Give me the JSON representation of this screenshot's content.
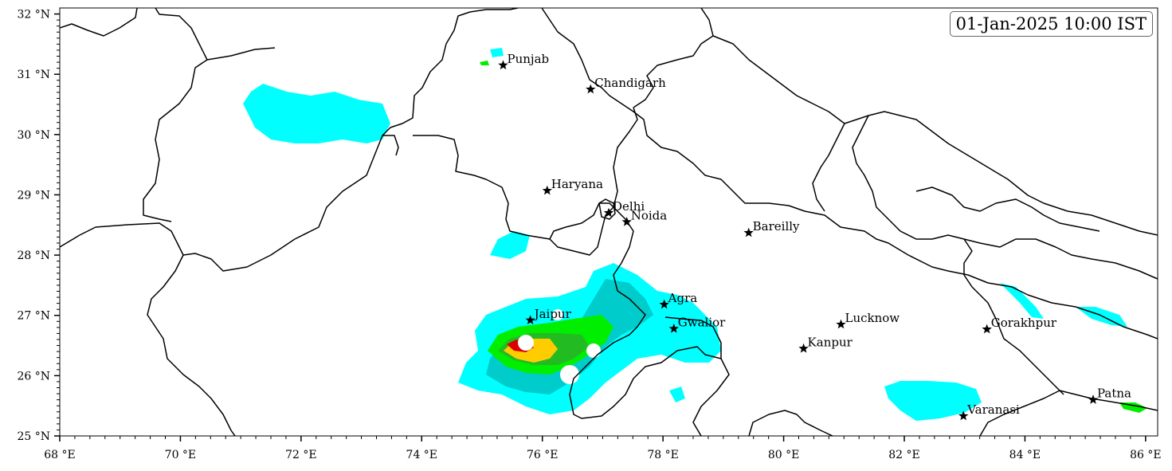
{
  "timestamp": "01-Jan-2025 10:00 IST",
  "axes": {
    "lon_range": [
      68,
      86.2
    ],
    "lat_range": [
      25,
      32.1
    ],
    "x_ticks": [
      {
        "value": 68,
        "label": "68 °E"
      },
      {
        "value": 70,
        "label": "70 °E"
      },
      {
        "value": 72,
        "label": "72 °E"
      },
      {
        "value": 74,
        "label": "74 °E"
      },
      {
        "value": 76,
        "label": "76 °E"
      },
      {
        "value": 78,
        "label": "78 °E"
      },
      {
        "value": 80,
        "label": "80 °E"
      },
      {
        "value": 82,
        "label": "82 °E"
      },
      {
        "value": 84,
        "label": "84 °E"
      },
      {
        "value": 86,
        "label": "86 °E"
      }
    ],
    "y_ticks": [
      {
        "value": 25,
        "label": "25 °N"
      },
      {
        "value": 26,
        "label": "26 °N"
      },
      {
        "value": 27,
        "label": "27 °N"
      },
      {
        "value": 28,
        "label": "28 °N"
      },
      {
        "value": 29,
        "label": "29 °N"
      },
      {
        "value": 30,
        "label": "30 °N"
      },
      {
        "value": 31,
        "label": "31 °N"
      },
      {
        "value": 32,
        "label": "32 °N"
      }
    ]
  },
  "cities": [
    {
      "name": "Punjab",
      "lon": 75.35,
      "lat": 31.15
    },
    {
      "name": "Chandigarh",
      "lon": 76.8,
      "lat": 30.75
    },
    {
      "name": "Haryana",
      "lon": 76.08,
      "lat": 29.07
    },
    {
      "name": "Delhi",
      "lon": 77.1,
      "lat": 28.7
    },
    {
      "name": "Noida",
      "lon": 77.4,
      "lat": 28.55
    },
    {
      "name": "Bareilly",
      "lon": 79.42,
      "lat": 28.37
    },
    {
      "name": "Agra",
      "lon": 78.02,
      "lat": 27.18
    },
    {
      "name": "Jaipur",
      "lon": 75.8,
      "lat": 26.92
    },
    {
      "name": "Gwalior",
      "lon": 78.18,
      "lat": 26.78
    },
    {
      "name": "Lucknow",
      "lon": 80.95,
      "lat": 26.85
    },
    {
      "name": "Kanpur",
      "lon": 80.33,
      "lat": 26.45
    },
    {
      "name": "Gorakhpur",
      "lon": 83.37,
      "lat": 26.77
    },
    {
      "name": "Varanasi",
      "lon": 82.98,
      "lat": 25.33
    },
    {
      "name": "Patna",
      "lon": 85.13,
      "lat": 25.6
    }
  ],
  "colors": {
    "level1": "#00ffff",
    "level2": "#00cccc",
    "level3": "#00ee00",
    "level4": "#22bb22",
    "level5": "#ffcc00",
    "level6": "#dd0000"
  }
}
